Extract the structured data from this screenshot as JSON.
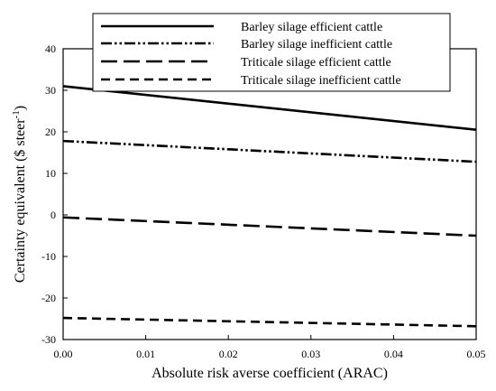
{
  "chart_data": {
    "type": "line",
    "title": "",
    "xlabel": "Absolute risk averse coefficient (ARAC)",
    "ylabel_main": "Certainty equivalent ($ steer",
    "ylabel_superscript": "-1",
    "ylabel_close": ")",
    "xlim": [
      0,
      0.05
    ],
    "ylim": [
      -30,
      40
    ],
    "xticks": [
      0.0,
      0.01,
      0.02,
      0.03,
      0.04,
      0.05
    ],
    "xtick_labels": [
      "0.00",
      "0.01",
      "0.02",
      "0.03",
      "0.04",
      "0.05"
    ],
    "yticks": [
      -30,
      -20,
      -10,
      0,
      10,
      20,
      30,
      40
    ],
    "ytick_labels": [
      "-30",
      "-20",
      "-10",
      "0",
      "10",
      "20",
      "30",
      "40"
    ],
    "grid": false,
    "legend_position": "top-center",
    "series": [
      {
        "name": "Barley silage efficient cattle",
        "x": [
          0,
          0.05
        ],
        "y": [
          31,
          20.5
        ],
        "style": "solid",
        "color": "#000000"
      },
      {
        "name": "Barley silage inefficient cattle",
        "x": [
          0,
          0.05
        ],
        "y": [
          17.8,
          12.8
        ],
        "style": "dash-dot-dot",
        "color": "#000000"
      },
      {
        "name": "Triticale silage efficient cattle",
        "x": [
          0,
          0.05
        ],
        "y": [
          -0.6,
          -5
        ],
        "style": "long-dash",
        "color": "#000000"
      },
      {
        "name": "Triticale silage inefficient cattle",
        "x": [
          0,
          0.05
        ],
        "y": [
          -24.8,
          -26.8
        ],
        "style": "dash",
        "color": "#000000"
      }
    ]
  }
}
